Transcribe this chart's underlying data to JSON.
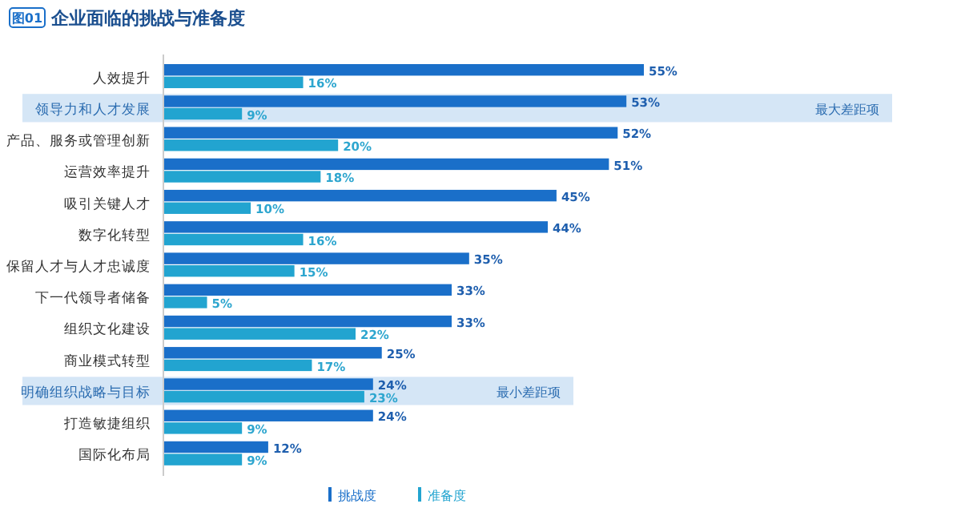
{
  "chart_data": {
    "type": "bar",
    "orientation": "horizontal",
    "title": "企业面临的挑战与准备度",
    "annotations": [
      "图01"
    ],
    "categories": [
      "人效提升",
      "领导力和人才发展",
      "产品、服务或管理创新",
      "运营效率提升",
      "吸引关键人才",
      "数字化转型",
      "保留人才与人才忠诚度",
      "下一代领导者储备",
      "组织文化建设",
      "商业模式转型",
      "明确组织战略与目标",
      "打造敏捷组织",
      "国际化布局"
    ],
    "series": [
      {
        "name": "挑战度",
        "color": "#1a6fc9",
        "values": [
          55,
          53,
          52,
          51,
          45,
          44,
          35,
          33,
          33,
          25,
          24,
          24,
          12
        ],
        "value_labels": [
          "55%",
          "53%",
          "52%",
          "51%",
          "45%",
          "44%",
          "35%",
          "33%",
          "33%",
          "25%",
          "24%",
          "24%",
          "12%"
        ]
      },
      {
        "name": "准备度",
        "color": "#22a4d0",
        "values": [
          16,
          9,
          20,
          18,
          10,
          16,
          15,
          5,
          22,
          17,
          23,
          9,
          9
        ],
        "value_labels": [
          "16%",
          "9%",
          "20%",
          "18%",
          "10%",
          "16%",
          "15%",
          "5%",
          "22%",
          "17%",
          "23%",
          "9%",
          "9%"
        ]
      }
    ],
    "bands": [
      {
        "axis": "y",
        "from": "领导力和人才发展",
        "to": "领导力和人才发展",
        "label": "最大差距项",
        "color": "#d5e6f6"
      },
      {
        "axis": "y",
        "from": "明确组织战略与目标",
        "to": "明确组织战略与目标",
        "label": "最小差距项",
        "color": "#d5e6f6"
      }
    ],
    "legend": "bottom"
  }
}
